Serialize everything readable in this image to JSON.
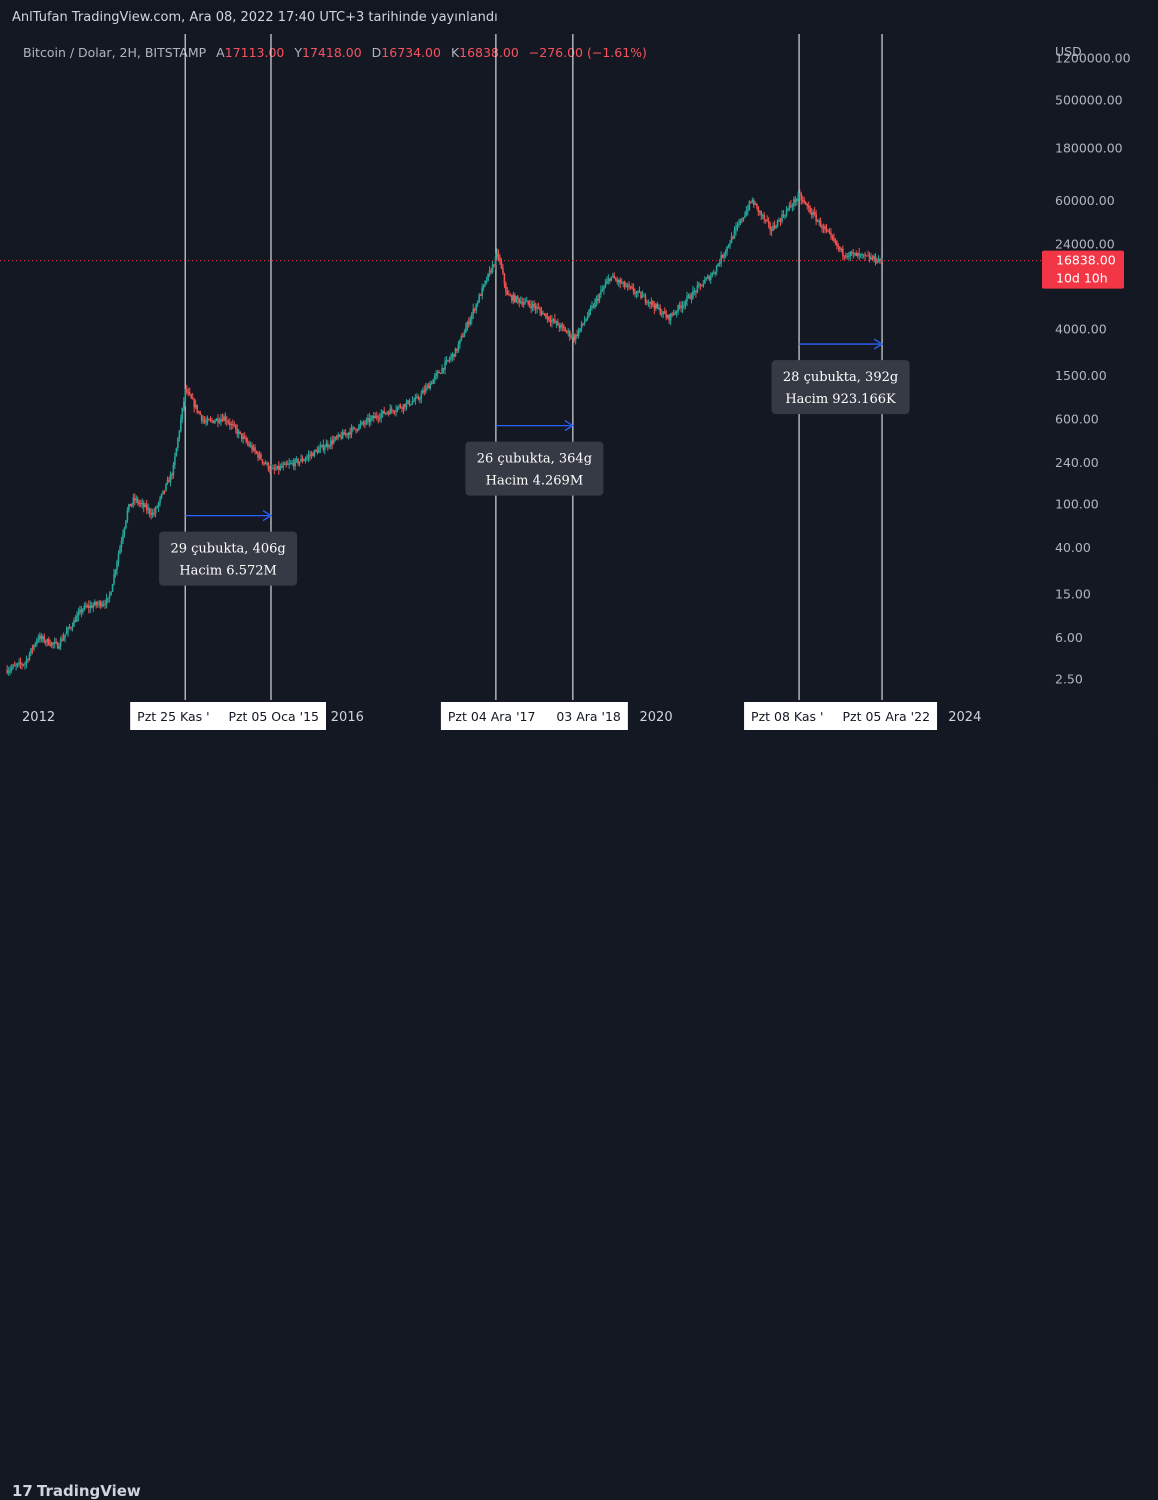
{
  "publish_line": "AnlTufan TradingView.com, Ara 08, 2022 17:40 UTC+3 tarihinde yayınlandı",
  "symbol": {
    "name": "Bitcoin / Dolar, 2H, BITSTAMP",
    "o_label": "A",
    "o_value": "17113.00",
    "h_label": "Y",
    "h_value": "17418.00",
    "l_label": "D",
    "l_value": "16734.00",
    "c_label": "K",
    "c_value": "16838.00",
    "change": "−276.00 (−1.61%)"
  },
  "colors": {
    "up": "#26a69a",
    "down": "#ef5350",
    "measure": "#2962ff",
    "price_line": "#f23645"
  },
  "chart_data": {
    "type": "candlestick",
    "y_scale": "log",
    "currency_label": "USD",
    "ylim": [
      1.6,
      2000000
    ],
    "y_ticks": [
      "1200000.00",
      "500000.00",
      "180000.00",
      "60000.00",
      "24000.00",
      "4000.00",
      "1500.00",
      "600.00",
      "240.00",
      "100.00",
      "40.00",
      "15.00",
      "6.00",
      "2.50"
    ],
    "x_ticks": [
      "2012",
      "2016",
      "2020",
      "2024"
    ],
    "xlim": [
      "2011-07",
      "2025-01"
    ],
    "current_price": {
      "value": "16838.00",
      "countdown": "10d 10h"
    },
    "price_path": [
      [
        "2011-08",
        3
      ],
      [
        "2011-11",
        3.5
      ],
      [
        "2012-01",
        6
      ],
      [
        "2012-04",
        5
      ],
      [
        "2012-08",
        11
      ],
      [
        "2012-12",
        13
      ],
      [
        "2013-03",
        90
      ],
      [
        "2013-04",
        110
      ],
      [
        "2013-07",
        80
      ],
      [
        "2013-10",
        200
      ],
      [
        "2013-11-30",
        1100
      ],
      [
        "2014-03",
        550
      ],
      [
        "2014-06",
        620
      ],
      [
        "2014-09",
        390
      ],
      [
        "2015-01-14",
        200
      ],
      [
        "2015-06",
        250
      ],
      [
        "2015-11",
        380
      ],
      [
        "2016-06",
        650
      ],
      [
        "2016-12",
        900
      ],
      [
        "2017-06",
        2500
      ],
      [
        "2017-12-17",
        19500
      ],
      [
        "2018-02",
        8000
      ],
      [
        "2018-06",
        6500
      ],
      [
        "2018-12-15",
        3300
      ],
      [
        "2019-06",
        12000
      ],
      [
        "2019-12",
        7200
      ],
      [
        "2020-03",
        5000
      ],
      [
        "2020-10",
        13000
      ],
      [
        "2021-04",
        60000
      ],
      [
        "2021-07",
        32000
      ],
      [
        "2021-11-10",
        66000
      ],
      [
        "2022-06",
        20000
      ],
      [
        "2022-12-05",
        16838
      ]
    ],
    "vertical_markers": [
      {
        "label": "Pzt 25 Kas '",
        "date": "2013-11-25"
      },
      {
        "label": "Pzt 05 Oca '15",
        "date": "2015-01-05"
      },
      {
        "label": "Pzt 04 Ara '17",
        "date": "2017-12-04"
      },
      {
        "label": "03 Ara '18",
        "date": "2018-12-03"
      },
      {
        "label": "Pzt 08 Kas '",
        "date": "2021-11-08"
      },
      {
        "label": "Pzt 05 Ara '22",
        "date": "2022-12-05"
      }
    ],
    "measurements": [
      {
        "line1": "29 çubukta, 406g",
        "line2": "Hacim 6.572M",
        "from": "2013-11-25",
        "to": "2015-01-05",
        "level": 78
      },
      {
        "line1": "26 çubukta, 364g",
        "line2": "Hacim 4.269M",
        "from": "2017-12-04",
        "to": "2018-12-03",
        "level": 520
      },
      {
        "line1": "28 çubukta, 392g",
        "line2": "Hacim 923.166K",
        "from": "2021-11-08",
        "to": "2022-12-05",
        "level": 2900
      }
    ]
  },
  "footer": {
    "brand": "TradingView"
  }
}
